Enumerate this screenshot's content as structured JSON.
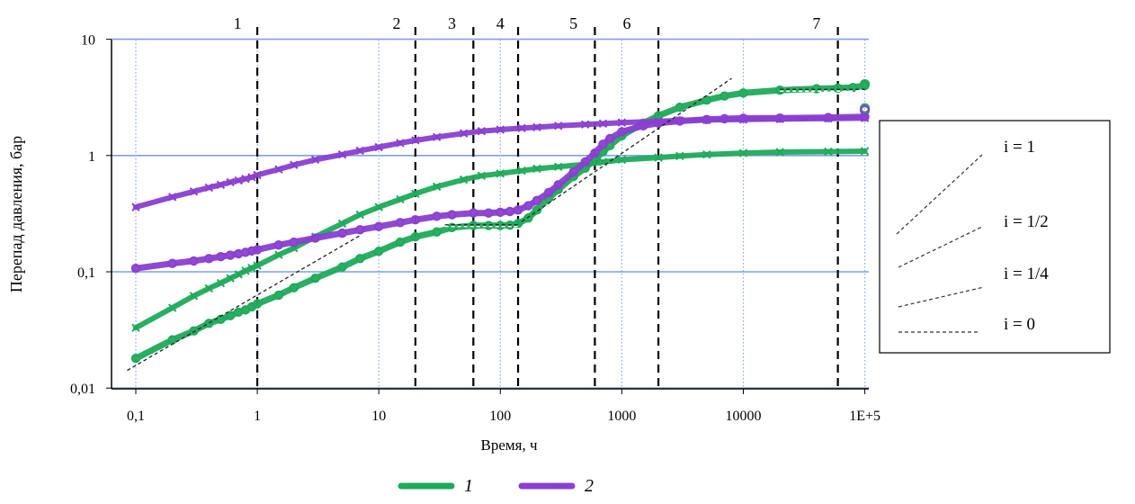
{
  "chart_data": {
    "type": "scatter",
    "title": "",
    "xlabel": "Время, ч",
    "ylabel": "Перепад давления, бар",
    "x_scale": "log",
    "y_scale": "log",
    "xlim": [
      0.045,
      100000
    ],
    "ylim": [
      0.01,
      10
    ],
    "x_ticks": [
      0.1,
      1,
      10,
      100,
      1000,
      10000,
      100000
    ],
    "x_tick_labels": [
      "0,1",
      "1",
      "10",
      "100",
      "1000",
      "10000",
      "1E+5"
    ],
    "y_ticks": [
      0.01,
      0.1,
      1,
      10
    ],
    "y_tick_labels": [
      "0,01",
      "0,1",
      "1",
      "10"
    ],
    "grid": true,
    "zone_boundaries": [
      1,
      20,
      60,
      140,
      600,
      2000,
      60000
    ],
    "zones": [
      {
        "label": "1",
        "x": 1
      },
      {
        "label": "2",
        "x": 14
      },
      {
        "label": "3",
        "x": 40
      },
      {
        "label": "4",
        "x": 100
      },
      {
        "label": "5",
        "x": 400
      },
      {
        "label": "6",
        "x": 1100
      },
      {
        "label": "7",
        "x": 40000
      }
    ],
    "series": [
      {
        "name": "1",
        "color": "#1faa5a",
        "kind": "pressure",
        "x": [
          0.1,
          0.2,
          0.3,
          0.4,
          0.5,
          0.6,
          0.7,
          0.8,
          0.9,
          1,
          1.5,
          2,
          3,
          5,
          7,
          10,
          15,
          20,
          30,
          40,
          60,
          80,
          100,
          120,
          140,
          170,
          200,
          250,
          300,
          400,
          500,
          600,
          700,
          800,
          1000,
          1500,
          2000,
          3000,
          5000,
          7000,
          10000,
          20000,
          40000,
          60000,
          80000,
          100000
        ],
        "y": [
          0.018,
          0.026,
          0.031,
          0.036,
          0.039,
          0.042,
          0.045,
          0.047,
          0.05,
          0.053,
          0.063,
          0.073,
          0.088,
          0.11,
          0.13,
          0.15,
          0.18,
          0.2,
          0.22,
          0.24,
          0.25,
          0.25,
          0.25,
          0.252,
          0.26,
          0.29,
          0.34,
          0.43,
          0.51,
          0.66,
          0.78,
          0.92,
          1.08,
          1.22,
          1.48,
          1.9,
          2.2,
          2.6,
          3.0,
          3.25,
          3.45,
          3.65,
          3.75,
          3.8,
          3.85,
          4.0
        ]
      },
      {
        "name": "1",
        "color": "#1faa5a",
        "kind": "derivative",
        "x": [
          0.1,
          0.2,
          0.3,
          0.4,
          0.5,
          0.6,
          0.7,
          0.8,
          0.9,
          1,
          1.5,
          2,
          3,
          5,
          7,
          10,
          15,
          20,
          30,
          50,
          70,
          100,
          150,
          200,
          300,
          500,
          700,
          1000,
          2000,
          3000,
          5000,
          10000,
          20000,
          50000,
          100000
        ],
        "y": [
          0.033,
          0.049,
          0.062,
          0.072,
          0.08,
          0.088,
          0.095,
          0.102,
          0.108,
          0.113,
          0.14,
          0.16,
          0.2,
          0.26,
          0.31,
          0.36,
          0.42,
          0.47,
          0.54,
          0.62,
          0.67,
          0.7,
          0.74,
          0.77,
          0.8,
          0.84,
          0.88,
          0.92,
          0.96,
          0.99,
          1.02,
          1.05,
          1.07,
          1.08,
          1.09
        ]
      },
      {
        "name": "2",
        "color": "#8a3fd0",
        "kind": "pressure",
        "x": [
          0.1,
          0.2,
          0.3,
          0.4,
          0.5,
          0.6,
          0.7,
          0.8,
          0.9,
          1,
          1.5,
          2,
          3,
          5,
          7,
          10,
          15,
          20,
          30,
          40,
          60,
          80,
          100,
          120,
          140,
          170,
          200,
          250,
          300,
          400,
          500,
          600,
          700,
          800,
          1000,
          1500,
          2000,
          3000,
          5000,
          7000,
          10000,
          20000,
          50000,
          100000
        ],
        "y": [
          0.107,
          0.118,
          0.124,
          0.13,
          0.135,
          0.139,
          0.143,
          0.147,
          0.151,
          0.155,
          0.17,
          0.18,
          0.195,
          0.215,
          0.23,
          0.245,
          0.265,
          0.28,
          0.3,
          0.31,
          0.32,
          0.32,
          0.325,
          0.33,
          0.34,
          0.37,
          0.41,
          0.48,
          0.56,
          0.72,
          0.88,
          1.05,
          1.25,
          1.4,
          1.6,
          1.8,
          1.9,
          1.98,
          2.04,
          2.07,
          2.09,
          2.1,
          2.12,
          2.15
        ]
      },
      {
        "name": "2",
        "color": "#8a3fd0",
        "kind": "derivative",
        "x": [
          0.1,
          0.2,
          0.3,
          0.4,
          0.5,
          0.6,
          0.7,
          0.8,
          0.9,
          1,
          1.5,
          2,
          3,
          5,
          7,
          10,
          15,
          20,
          30,
          50,
          70,
          100,
          150,
          200,
          300,
          500,
          700,
          1000,
          2000,
          3000,
          5000,
          10000,
          20000,
          50000,
          100000
        ],
        "y": [
          0.36,
          0.44,
          0.49,
          0.53,
          0.56,
          0.59,
          0.61,
          0.63,
          0.65,
          0.68,
          0.76,
          0.83,
          0.92,
          1.02,
          1.1,
          1.18,
          1.28,
          1.35,
          1.44,
          1.55,
          1.62,
          1.67,
          1.72,
          1.75,
          1.8,
          1.85,
          1.88,
          1.92,
          1.97,
          2.0,
          2.02,
          2.04,
          2.06,
          2.08,
          2.1
        ]
      }
    ],
    "reference_lines": [
      {
        "label": "i = 1",
        "slope": 1,
        "x": [
          150,
          8000
        ],
        "y": [
          0.27,
          4.6
        ]
      },
      {
        "label": "i = 1/2",
        "slope": 0.5,
        "x": [
          0.085,
          7
        ],
        "y": [
          0.0142,
          0.205
        ]
      },
      {
        "label": "i = 0",
        "slope": 0,
        "x": [
          35,
          140
        ],
        "y": [
          0.245,
          0.245
        ]
      },
      {
        "label": "i = 0",
        "slope": 0,
        "x": [
          20000,
          100000
        ],
        "y": [
          3.58,
          3.58
        ]
      }
    ],
    "end_markers": [
      {
        "x": 100000,
        "y": 4.1,
        "series": "1"
      },
      {
        "x": 100000,
        "y": 2.55,
        "series": "1"
      },
      {
        "x": 100000,
        "y": 2.45,
        "series": "2"
      }
    ],
    "slope_legend": [
      {
        "label": "i = 1",
        "slope": 1
      },
      {
        "label": "i = 1/2",
        "slope": 0.5
      },
      {
        "label": "i = 1/4",
        "slope": 0.25
      },
      {
        "label": "i = 0",
        "slope": 0
      }
    ],
    "legend": {
      "position": "bottom",
      "entries": [
        {
          "label": "1",
          "color": "#1faa5a"
        },
        {
          "label": "2",
          "color": "#8a3fd0"
        }
      ]
    }
  }
}
